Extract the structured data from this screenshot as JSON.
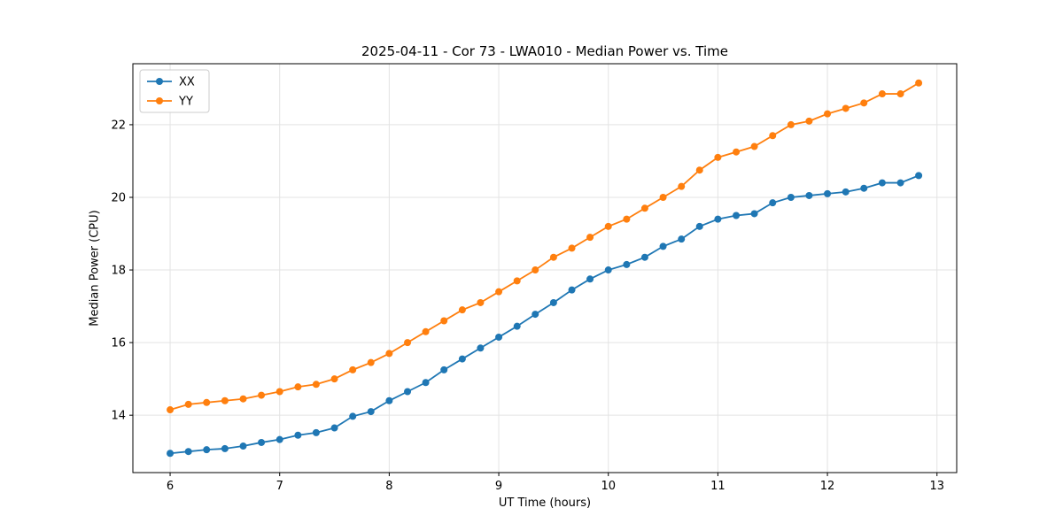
{
  "chart_data": {
    "type": "line",
    "title": "2025-04-11 - Cor 73 - LWA010 - Median Power vs. Time",
    "xlabel": "UT Time (hours)",
    "ylabel": "Median Power (CPU)",
    "xlim": [
      5.66,
      13.18
    ],
    "ylim": [
      12.42,
      23.68
    ],
    "xticks": [
      6,
      7,
      8,
      9,
      10,
      11,
      12,
      13
    ],
    "yticks": [
      14,
      16,
      18,
      20,
      22
    ],
    "grid": true,
    "legend_position": "upper left",
    "x": [
      6.0,
      6.167,
      6.333,
      6.5,
      6.667,
      6.833,
      7.0,
      7.167,
      7.333,
      7.5,
      7.667,
      7.833,
      8.0,
      8.167,
      8.333,
      8.5,
      8.667,
      8.833,
      9.0,
      9.167,
      9.333,
      9.5,
      9.667,
      9.833,
      10.0,
      10.167,
      10.333,
      10.5,
      10.667,
      10.833,
      11.0,
      11.167,
      11.333,
      11.5,
      11.667,
      11.833,
      12.0,
      12.167,
      12.333,
      12.5,
      12.667,
      12.833
    ],
    "series": [
      {
        "name": "XX",
        "color": "#1f77b4",
        "values": [
          12.95,
          13.0,
          13.05,
          13.08,
          13.15,
          13.25,
          13.33,
          13.45,
          13.52,
          13.65,
          13.97,
          14.1,
          14.4,
          14.65,
          14.9,
          15.25,
          15.55,
          15.85,
          16.15,
          16.45,
          16.78,
          17.1,
          17.45,
          17.75,
          18.0,
          18.15,
          18.35,
          18.65,
          18.85,
          19.2,
          19.4,
          19.5,
          19.55,
          19.85,
          20.0,
          20.05,
          20.1,
          20.15,
          20.25,
          20.4,
          20.4,
          20.6
        ]
      },
      {
        "name": "YY",
        "color": "#ff7f0e",
        "values": [
          14.15,
          14.3,
          14.35,
          14.4,
          14.45,
          14.55,
          14.65,
          14.78,
          14.85,
          15.0,
          15.25,
          15.45,
          15.7,
          16.0,
          16.3,
          16.6,
          16.9,
          17.1,
          17.4,
          17.7,
          18.0,
          18.35,
          18.6,
          18.9,
          19.2,
          19.4,
          19.7,
          20.0,
          20.3,
          20.75,
          21.1,
          21.25,
          21.4,
          21.7,
          22.0,
          22.1,
          22.3,
          22.45,
          22.6,
          22.85,
          22.85,
          23.15
        ]
      }
    ],
    "marker": "circle",
    "frame_color": "#000000",
    "grid_color": "#e3e3e3",
    "legend_border_color": "#cccccc"
  }
}
